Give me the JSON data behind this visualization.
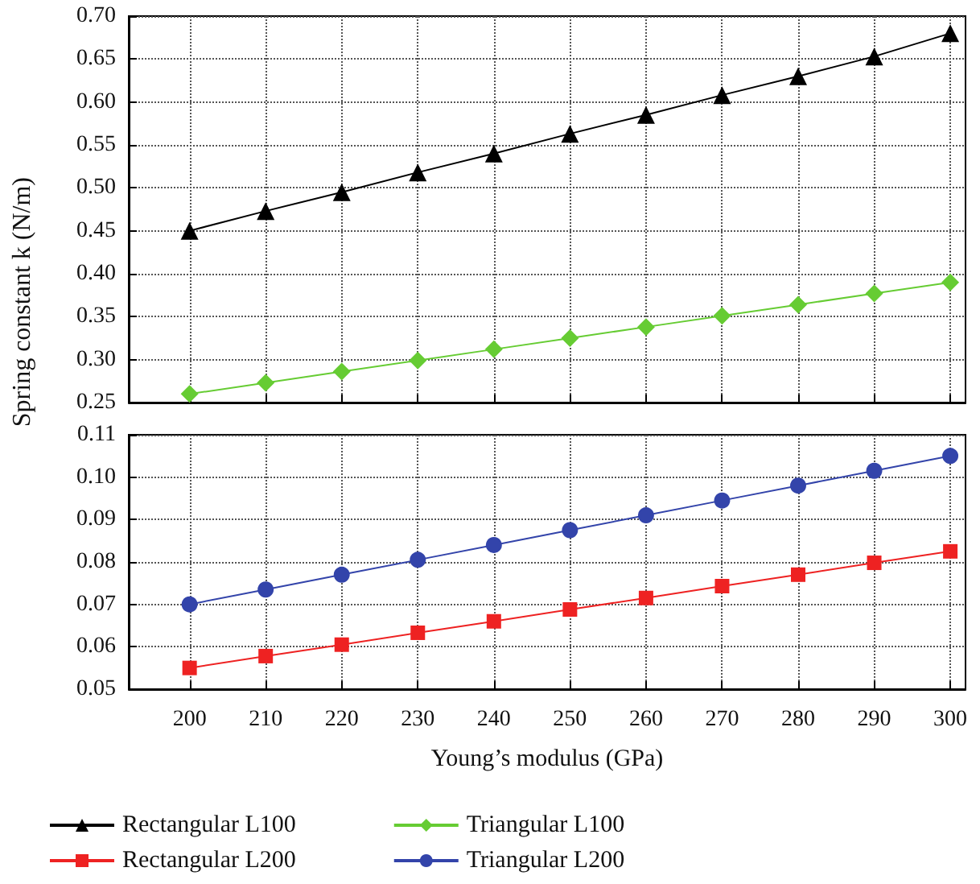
{
  "chart_data": [
    {
      "type": "line",
      "ylabel": "Spring constant k (N/m)",
      "x": [
        200,
        210,
        220,
        230,
        240,
        250,
        260,
        270,
        280,
        290,
        300
      ],
      "xlim": [
        192,
        302
      ],
      "xticks": [
        200,
        210,
        220,
        230,
        240,
        250,
        260,
        270,
        280,
        290,
        300
      ],
      "ylim": [
        0.25,
        0.7
      ],
      "yticks": [
        0.25,
        {
          "value": 0.3,
          "label": "0.30"
        },
        0.35,
        {
          "value": 0.4,
          "label": "0.40"
        },
        0.45,
        {
          "value": 0.5,
          "label": "0.50"
        },
        0.55,
        {
          "value": 0.6,
          "label": "0.60"
        },
        0.65,
        {
          "value": 0.7,
          "label": "0.70"
        }
      ],
      "tick_labels": "y",
      "grid": true,
      "legend": "bottom",
      "line_style": "solid",
      "series": [
        {
          "name": "Rectangular L100",
          "color": "#000000",
          "marker": "triangle",
          "values": [
            0.45,
            0.473,
            0.495,
            0.518,
            0.54,
            0.563,
            0.585,
            0.608,
            0.63,
            0.653,
            0.68
          ]
        },
        {
          "name": "Triangular L100",
          "color": "#66cc33",
          "marker": "diamond",
          "values": [
            0.26,
            0.273,
            0.286,
            0.299,
            0.312,
            0.325,
            0.338,
            0.351,
            0.364,
            0.377,
            0.39
          ]
        }
      ]
    },
    {
      "type": "line",
      "xlabel": "Young’s modulus (GPa)",
      "x": [
        200,
        210,
        220,
        230,
        240,
        250,
        260,
        270,
        280,
        290,
        300
      ],
      "xlim": [
        192,
        302
      ],
      "xticks": [
        200,
        210,
        220,
        230,
        240,
        250,
        260,
        270,
        280,
        290,
        300
      ],
      "ylim": [
        0.05,
        0.11
      ],
      "yticks": [
        0.05,
        0.06,
        0.07,
        0.08,
        0.09,
        {
          "value": 0.1,
          "label": "0.10"
        },
        0.11
      ],
      "grid": true,
      "legend": "bottom",
      "line_style": "solid",
      "series": [
        {
          "name": "Rectangular L200",
          "color": "#ee2222",
          "marker": "square",
          "values": [
            0.055,
            0.0578,
            0.0605,
            0.0633,
            0.066,
            0.0688,
            0.0715,
            0.0743,
            0.077,
            0.0798,
            0.0825
          ]
        },
        {
          "name": "Triangular L200",
          "color": "#3344aa",
          "marker": "circle",
          "values": [
            0.07,
            0.0735,
            0.077,
            0.0805,
            0.084,
            0.0875,
            0.091,
            0.0945,
            0.098,
            0.1015,
            0.105
          ]
        }
      ]
    }
  ]
}
